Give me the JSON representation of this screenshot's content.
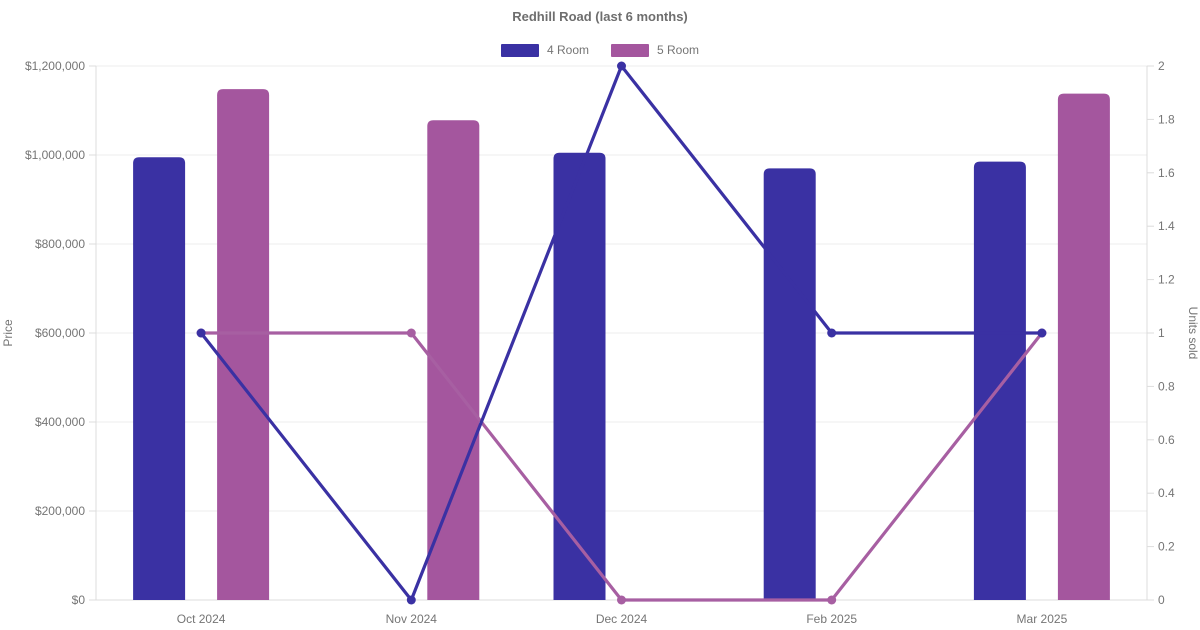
{
  "title": "Redhill Road (last 6 months)",
  "legend": [
    {
      "label": "4 Room",
      "color": "#3a31a3"
    },
    {
      "label": "5 Room",
      "color": "#a4569e"
    }
  ],
  "colors": {
    "four_room": "#3a31a3",
    "five_room": "#a4569e",
    "five_room_line": "#a75fa2",
    "grid": "#ececec",
    "axis_border": "#dcdcdc",
    "tick_text": "#757575",
    "title_text": "#6e6e6e"
  },
  "chart_data": {
    "type": "bar",
    "subtype": "combo bar (price, left axis) + line with point markers (units sold, right axis)",
    "title": "Redhill Road (last 6 months)",
    "categories": [
      "Oct 2024",
      "Nov 2024",
      "Dec 2024",
      "Feb 2025",
      "Mar 2025"
    ],
    "series": [
      {
        "name": "4 Room price",
        "legend": "4 Room",
        "type": "bar",
        "axis": "left",
        "color": "#3a31a3",
        "offset": -42,
        "values": [
          995000,
          null,
          1005000,
          970000,
          985000
        ]
      },
      {
        "name": "5 Room price",
        "legend": "5 Room",
        "type": "bar",
        "axis": "left",
        "color": "#a4569e",
        "offset": 42,
        "values": [
          1148000,
          1078000,
          null,
          null,
          1138000
        ]
      },
      {
        "name": "5 Room units sold",
        "legend": "5 Room",
        "type": "line",
        "axis": "right",
        "color": "#a75fa2",
        "values": [
          1,
          1,
          0,
          0,
          1
        ]
      },
      {
        "name": "4 Room units sold",
        "legend": "4 Room",
        "type": "line",
        "axis": "right",
        "color": "#3a31a3",
        "values": [
          1,
          0,
          2,
          1,
          1
        ]
      }
    ],
    "y_left": {
      "label": "Price",
      "min": 0,
      "max": 1200000,
      "tick_step": 200000,
      "tick_values": [
        0,
        200000,
        400000,
        600000,
        800000,
        1000000,
        1200000
      ],
      "tick_labels": [
        "$0",
        "$200,000",
        "$400,000",
        "$600,000",
        "$800,000",
        "$1,000,000",
        "$1,200,000"
      ]
    },
    "y_right": {
      "label": "Units sold",
      "min": 0,
      "max": 2,
      "tick_step": 0.2,
      "tick_values": [
        0,
        0.2,
        0.4,
        0.6,
        0.8,
        1,
        1.2,
        1.4,
        1.6,
        1.8,
        2
      ],
      "tick_labels": [
        "0",
        "0.2",
        "0.4",
        "0.6",
        "0.8",
        "1",
        "1.2",
        "1.4",
        "1.6",
        "1.8",
        "2"
      ]
    },
    "grid": "horizontal gridlines at left-axis ticks only",
    "legend_position": "top center"
  }
}
